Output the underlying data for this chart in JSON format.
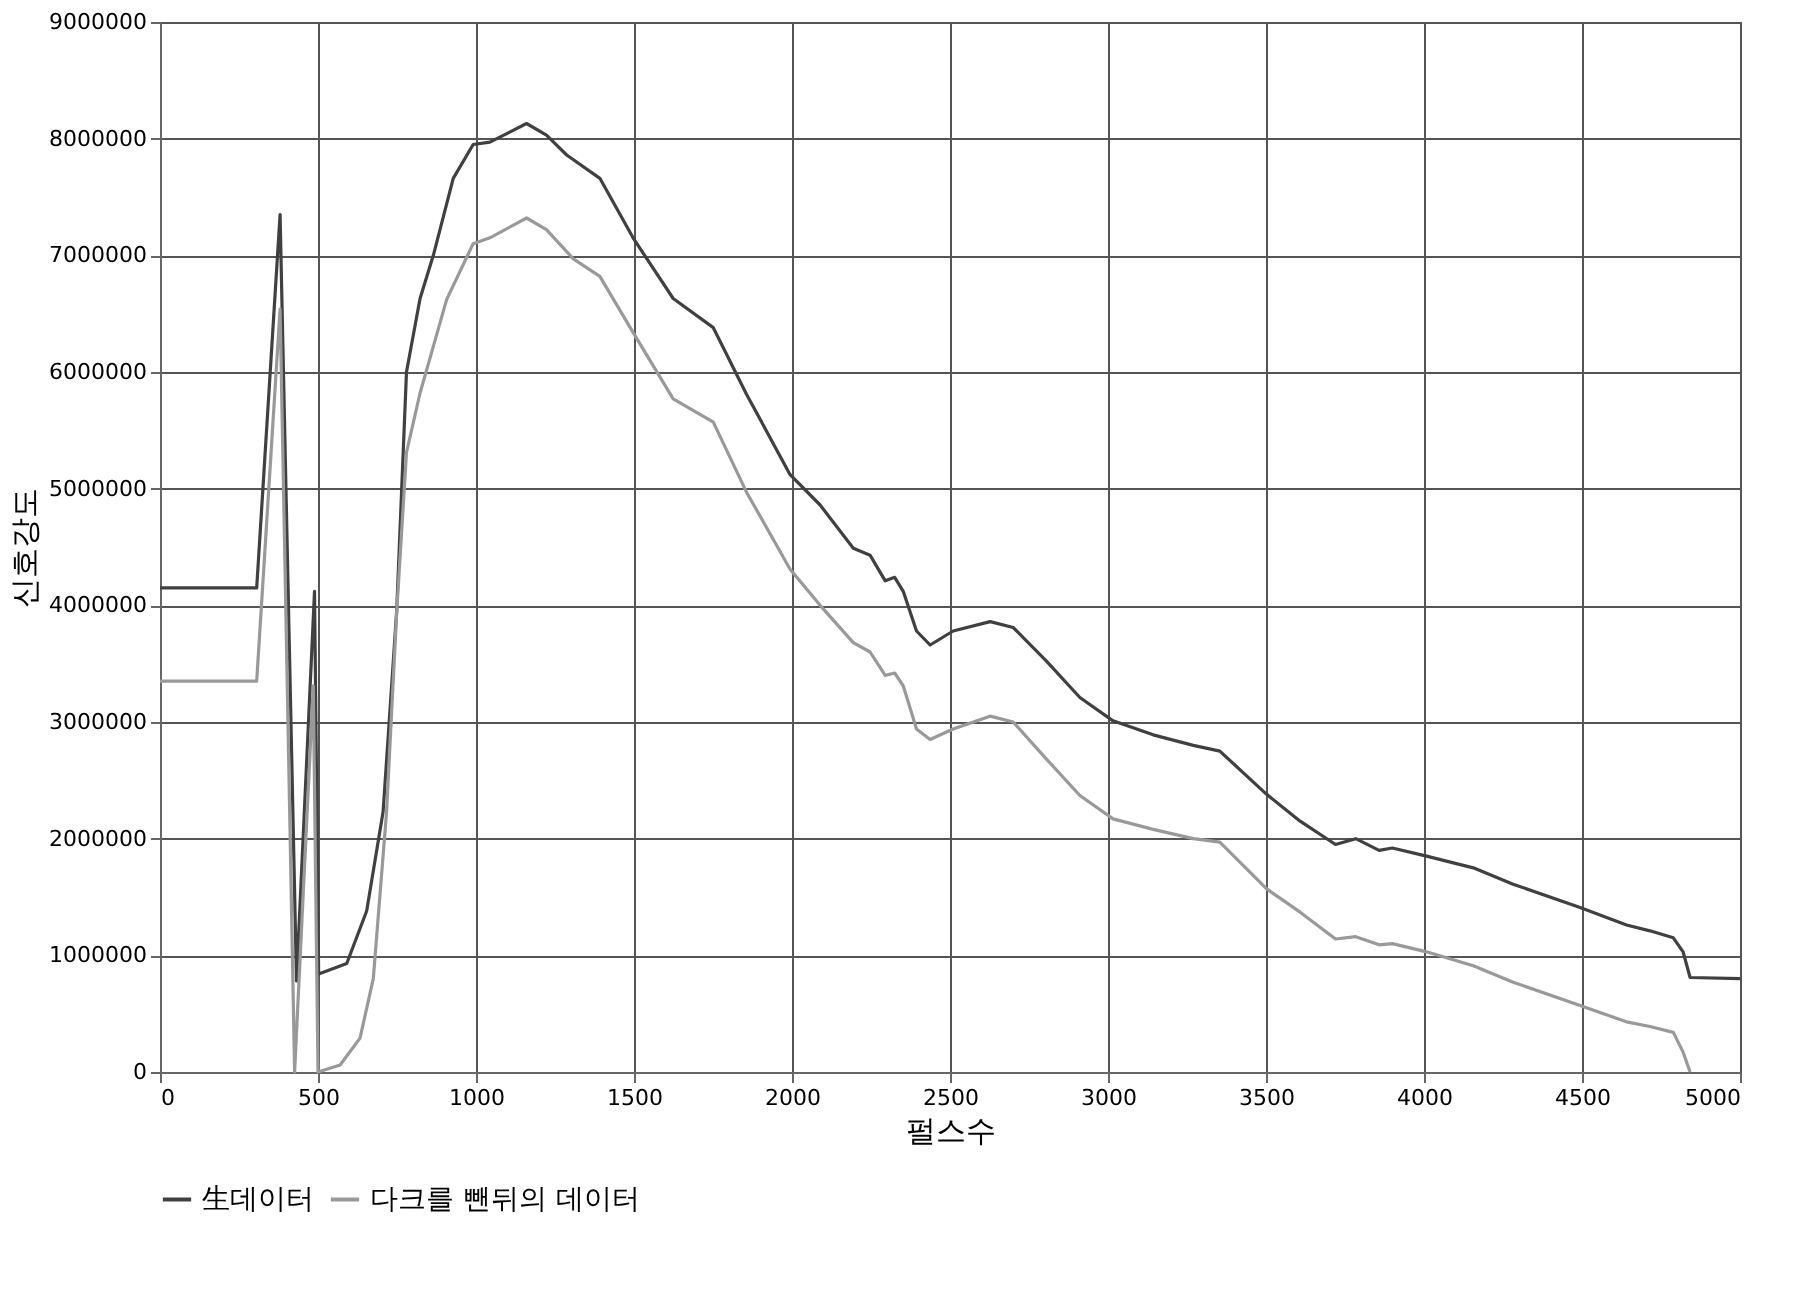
{
  "chart_data": {
    "type": "line",
    "xlabel": "펄스수",
    "ylabel": "신호강도",
    "xlim": [
      0,
      5000
    ],
    "xticks": [
      0,
      500,
      1000,
      1500,
      2000,
      2500,
      3000,
      3500,
      4000,
      4500,
      5000
    ],
    "ylim": [
      0,
      9000000
    ],
    "yticks": [
      0,
      1000000,
      2000000,
      3000000,
      4000000,
      5000000,
      6000000,
      7000000,
      8000000,
      9000000
    ],
    "grid": true,
    "legend": "bottom",
    "marker": "none",
    "line_style": "solid",
    "series": [
      {
        "name": "生데이터",
        "color": "#404040",
        "x": [
          0,
          306,
          380,
          432,
          489,
          502,
          591,
          654,
          706,
          749,
          780,
          823,
          865,
          928,
          991,
          1044,
          1160,
          1223,
          1287,
          1392,
          1497,
          1624,
          1751,
          1856,
          1994,
          2089,
          2194,
          2247,
          2295,
          2325,
          2352,
          2394,
          2437,
          2510,
          2627,
          2700,
          2806,
          2911,
          3016,
          3143,
          3270,
          3354,
          3502,
          3608,
          3720,
          3784,
          3858,
          3900,
          4008,
          4156,
          4282,
          4494,
          4641,
          4715,
          4789,
          4820,
          4842,
          5000
        ],
        "values": [
          4150000,
          4150000,
          7350000,
          780000,
          4120000,
          840000,
          930000,
          1380000,
          2230000,
          3950000,
          6000000,
          6630000,
          7000000,
          7660000,
          7950000,
          7970000,
          8130000,
          8030000,
          7860000,
          7660000,
          7150000,
          6630000,
          6380000,
          5810000,
          5120000,
          4860000,
          4490000,
          4430000,
          4210000,
          4240000,
          4120000,
          3780000,
          3660000,
          3780000,
          3860000,
          3810000,
          3520000,
          3210000,
          3010000,
          2890000,
          2800000,
          2750000,
          2380000,
          2150000,
          1950000,
          2000000,
          1900000,
          1920000,
          1850000,
          1750000,
          1610000,
          1410000,
          1260000,
          1210000,
          1150000,
          1030000,
          810000,
          800000
        ]
      },
      {
        "name": "다크를 뺀뒤의 데이터",
        "color": "#999999",
        "x": [
          0,
          306,
          380,
          426,
          485,
          500,
          570,
          633,
          675,
          717,
          749,
          780,
          823,
          865,
          907,
          991,
          1044,
          1160,
          1223,
          1308,
          1392,
          1497,
          1624,
          1751,
          1856,
          1994,
          2089,
          2194,
          2247,
          2295,
          2325,
          2352,
          2394,
          2437,
          2510,
          2627,
          2700,
          2806,
          2911,
          3016,
          3143,
          3270,
          3354,
          3502,
          3608,
          3720,
          3784,
          3858,
          3900,
          4008,
          4156,
          4282,
          4494,
          4641,
          4715,
          4789,
          4820,
          4842
        ],
        "values": [
          3350000,
          3350000,
          6540000,
          0,
          3310000,
          0,
          60000,
          290000,
          800000,
          2230000,
          3940000,
          5310000,
          5820000,
          6220000,
          6620000,
          7100000,
          7150000,
          7320000,
          7220000,
          6970000,
          6820000,
          6340000,
          5770000,
          5570000,
          4970000,
          4310000,
          4000000,
          3680000,
          3600000,
          3400000,
          3420000,
          3310000,
          2940000,
          2850000,
          2940000,
          3050000,
          3000000,
          2680000,
          2370000,
          2170000,
          2080000,
          2000000,
          1970000,
          1570000,
          1370000,
          1140000,
          1160000,
          1090000,
          1100000,
          1030000,
          910000,
          770000,
          570000,
          430000,
          390000,
          340000,
          170000,
          0
        ]
      }
    ]
  }
}
